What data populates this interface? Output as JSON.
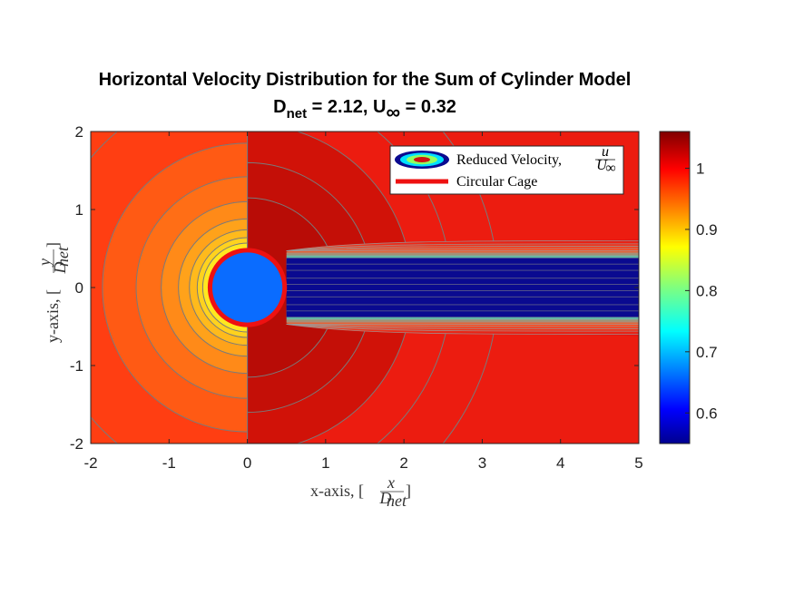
{
  "chart_data": {
    "type": "contour",
    "title": "Horizontal Velocity Distribution for the Sum of Cylinder Model",
    "subtitle": {
      "d_symbol": "D",
      "d_subscript": "net",
      "d_value": " = 2.12, ",
      "u_symbol": "U",
      "u_subscript": "∞",
      "u_value": " = 0.32"
    },
    "xlabel": {
      "prefix": "x-axis, [",
      "numerator": "x",
      "denominator": "D",
      "denominator_sub": "net",
      "suffix": "]"
    },
    "ylabel": {
      "prefix": "y-axis, [",
      "numerator": "y",
      "denominator": "D",
      "denominator_sub": "net",
      "suffix": "]"
    },
    "xlim": [
      -2,
      5
    ],
    "ylim": [
      -2,
      2
    ],
    "xticks": [
      "-2",
      "-1",
      "0",
      "1",
      "2",
      "3",
      "4",
      "5"
    ],
    "yticks": [
      "2",
      "1",
      "0",
      "-1",
      "-2"
    ],
    "colorbar": {
      "range": [
        0.55,
        1.06
      ],
      "ticks": [
        "1",
        "0.9",
        "0.8",
        "0.7",
        "0.6"
      ],
      "colormap": "jet"
    },
    "cage": {
      "center": [
        0,
        0
      ],
      "radius": 0.5
    },
    "wake": {
      "x_start": 0.5,
      "x_end": 5,
      "inner_half_width": 0.38,
      "outer_half_width": 0.5,
      "wake_value": 0.56
    },
    "legend": {
      "position": "top-right",
      "entries": [
        {
          "label": "Reduced Velocity, ",
          "math_numerator": "u",
          "math_denominator": "U",
          "math_denominator_sub": "∞",
          "marker": "contour-ellipse"
        },
        {
          "label": "Circular Cage",
          "marker": "red-line"
        }
      ]
    },
    "colors": {
      "cage_ring": "#ee1111",
      "cage_fill": "#0a6cff",
      "contour_line": "#7a7a7a",
      "wake_core": "#0a0a90"
    }
  }
}
